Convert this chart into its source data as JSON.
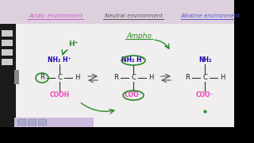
{
  "bg_color": "#ddd0dd",
  "white_bg": "#f0eeee",
  "title_acidic": "Acidic environment",
  "title_neutral": "Neutral environment",
  "title_alkaline": "Alkaline environment",
  "acidic_color": "#cc55cc",
  "neutral_color": "#555555",
  "alkaline_color": "#5555cc",
  "green_color": "#2a8a2a",
  "dark_blue": "#1a00aa",
  "pink_color": "#ee44bb",
  "sidebar_color": "#222222",
  "figsize": [
    3.2,
    1.8
  ],
  "dpi": 100
}
